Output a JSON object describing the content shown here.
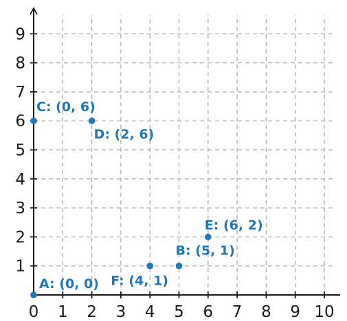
{
  "chart_data": {
    "type": "scatter",
    "title": "",
    "xlabel": "",
    "ylabel": "",
    "xlim": [
      0,
      10
    ],
    "ylim": [
      0,
      9
    ],
    "xticks": [
      "0",
      "1",
      "2",
      "3",
      "4",
      "5",
      "6",
      "7",
      "8",
      "9",
      "10"
    ],
    "yticks": [
      "1",
      "2",
      "3",
      "4",
      "5",
      "6",
      "7",
      "8",
      "9"
    ],
    "grid": true,
    "grid_style": "dashed",
    "colors": {
      "point": "#1f78b8",
      "label": "#1f78b8",
      "axis": "#1a1a1a",
      "grid": "#b0b0b0"
    },
    "points": [
      {
        "name": "A",
        "x": 0,
        "y": 0,
        "label": "A: (0, 0)"
      },
      {
        "name": "B",
        "x": 5,
        "y": 1,
        "label": "B: (5, 1)"
      },
      {
        "name": "C",
        "x": 0,
        "y": 6,
        "label": "C: (0, 6)"
      },
      {
        "name": "D",
        "x": 2,
        "y": 6,
        "label": "D: (2, 6)"
      },
      {
        "name": "E",
        "x": 6,
        "y": 2,
        "label": "E: (6, 2)"
      },
      {
        "name": "F",
        "x": 4,
        "y": 1,
        "label": "F: (4, 1)"
      }
    ]
  }
}
